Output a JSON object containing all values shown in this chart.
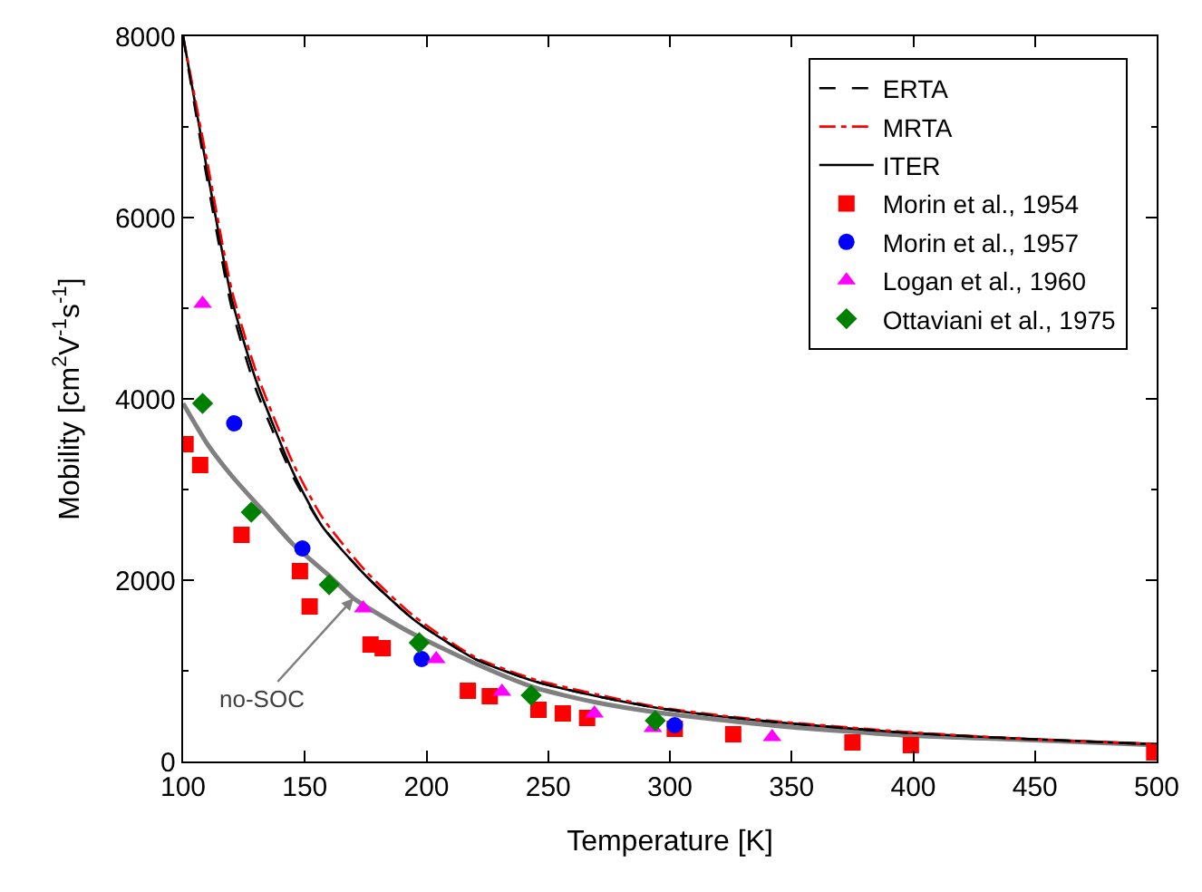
{
  "chart_data": {
    "type": "line",
    "xlabel": "Temperature [K]",
    "ylabel": "Mobility [cm$^{2}$V$^{-1}$s$^{-1}$]",
    "xlim": [
      100,
      500
    ],
    "xticks": [
      100,
      150,
      200,
      250,
      300,
      350,
      400,
      450,
      500
    ],
    "ylim": [
      0,
      8000
    ],
    "yticks": [
      0,
      2000,
      4000,
      6000,
      8000
    ],
    "legend": "top right",
    "series": [
      {
        "name": "ERTA",
        "line_style": "dashed",
        "color": "#000000",
        "x": [
          100,
          110,
          120,
          130,
          145,
          157,
          175,
          195,
          220,
          245,
          270,
          295,
          320,
          345,
          395,
          445,
          500
        ],
        "values": [
          8000,
          6400,
          5000,
          4100,
          3150,
          2600,
          2050,
          1560,
          1130,
          880,
          720,
          590,
          500,
          430,
          320,
          250,
          190
        ]
      },
      {
        "name": "MRTA",
        "line_style": "dashdot",
        "color": "#ff0000",
        "x": [
          100,
          110,
          120,
          130,
          145,
          157,
          175,
          195,
          220,
          245,
          270,
          295,
          320,
          345,
          395,
          445,
          500
        ],
        "values": [
          8000,
          6600,
          5200,
          4300,
          3300,
          2700,
          2100,
          1600,
          1150,
          900,
          740,
          600,
          510,
          440,
          330,
          250,
          190
        ]
      },
      {
        "name": "ITER",
        "line_style": "solid",
        "color": "#000000",
        "x": [
          100,
          110,
          120,
          130,
          145,
          157,
          175,
          195,
          220,
          245,
          270,
          295,
          320,
          345,
          395,
          445,
          500
        ],
        "values": [
          8000,
          6500,
          5100,
          4200,
          3200,
          2600,
          2050,
          1560,
          1130,
          880,
          720,
          590,
          500,
          430,
          320,
          250,
          190
        ]
      },
      {
        "name": "Morin et al., 1954",
        "type": "scatter",
        "marker": "square",
        "color": "#ff0000",
        "x": [
          101,
          107,
          124,
          148,
          152,
          177,
          182,
          217,
          226,
          246,
          256,
          266,
          302,
          326,
          375,
          399,
          499
        ],
        "values": [
          3500,
          3270,
          2500,
          2100,
          1710,
          1290,
          1250,
          780,
          720,
          570,
          530,
          480,
          360,
          300,
          210,
          180,
          100
        ]
      },
      {
        "name": "Morin et al., 1957",
        "type": "scatter",
        "marker": "circle",
        "color": "#0000ff",
        "x": [
          121,
          149,
          198,
          302
        ],
        "values": [
          3730,
          2350,
          1130,
          400
        ]
      },
      {
        "name": "Logan et al., 1960",
        "type": "scatter",
        "marker": "triangle",
        "color": "#ff00ff",
        "x": [
          108,
          174,
          204,
          231,
          269,
          293,
          342
        ],
        "values": [
          5050,
          1690,
          1130,
          770,
          530,
          370,
          270
        ]
      },
      {
        "name": "Ottaviani et al., 1975",
        "type": "scatter",
        "marker": "diamond",
        "color": "#008000",
        "x": [
          108,
          128,
          160,
          197,
          243,
          294
        ],
        "values": [
          3950,
          2750,
          1950,
          1310,
          730,
          450
        ]
      },
      {
        "line_style": "solid",
        "color": "#808080",
        "x": [
          100,
          110,
          120,
          135,
          145,
          160,
          170,
          185,
          195,
          220,
          245,
          270,
          295,
          345,
          395,
          445,
          500
        ],
        "values": [
          3950,
          3500,
          3150,
          2700,
          2400,
          2050,
          1800,
          1550,
          1400,
          1080,
          810,
          650,
          540,
          390,
          290,
          240,
          180
        ]
      }
    ],
    "annotations": [
      {
        "text": "no-SOC",
        "x": 170,
        "y": 1800
      }
    ]
  }
}
